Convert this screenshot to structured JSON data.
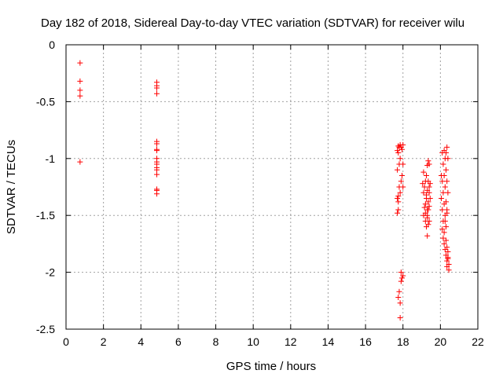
{
  "chart_data": {
    "type": "scatter",
    "title": "Day 182 of 2018, Sidereal Day-to-day VTEC variation (SDTVAR) for receiver wilu",
    "xlabel": "GPS time / hours",
    "ylabel": "SDTVAR / TECUs",
    "xlim": [
      0,
      22
    ],
    "ylim": [
      -2.5,
      0
    ],
    "xticks": [
      0,
      2,
      4,
      6,
      8,
      10,
      12,
      14,
      16,
      18,
      20,
      22
    ],
    "xtick_labels": [
      "0",
      "2",
      "4",
      "6",
      "8",
      "10",
      "12",
      "14",
      "16",
      "18",
      "20",
      "22"
    ],
    "yticks": [
      0,
      -0.5,
      -1,
      -1.5,
      -2,
      -2.5
    ],
    "ytick_labels": [
      "0",
      "-0.5",
      "-1",
      "-1.5",
      "-2",
      "-2.5"
    ],
    "grid": true,
    "marker": "+",
    "marker_color": "#ff0000",
    "series": [
      {
        "name": "SDTVAR",
        "x": [
          0.75,
          0.75,
          0.75,
          0.75,
          0.75,
          4.85,
          4.85,
          4.85,
          4.85,
          4.85,
          4.85,
          4.85,
          4.85,
          4.85,
          4.85,
          4.85,
          4.85,
          4.85,
          4.85,
          4.85,
          4.85,
          4.85,
          17.7,
          17.7,
          17.75,
          17.75,
          17.75,
          17.8,
          17.8,
          17.8,
          17.85,
          17.85,
          17.85,
          17.9,
          17.9,
          17.95,
          17.95,
          18.0,
          18.0,
          18.0,
          17.7,
          17.7,
          17.75,
          17.75,
          17.75,
          17.8,
          17.85,
          17.85,
          17.9,
          17.9,
          17.95,
          18.0,
          19.05,
          19.1,
          19.1,
          19.15,
          19.15,
          19.2,
          19.2,
          19.2,
          19.25,
          19.25,
          19.3,
          19.3,
          19.3,
          19.35,
          19.35,
          19.35,
          19.4,
          19.4,
          19.1,
          19.2,
          19.25,
          19.3,
          19.3,
          19.35,
          19.4,
          19.25,
          19.3,
          19.35,
          19.4,
          19.4,
          19.45,
          19.45,
          20.05,
          20.05,
          20.1,
          20.1,
          20.1,
          20.15,
          20.15,
          20.15,
          20.2,
          20.2,
          20.2,
          20.25,
          20.25,
          20.25,
          20.3,
          20.3,
          20.3,
          20.35,
          20.35,
          20.35,
          20.4,
          20.4,
          20.1,
          20.15,
          20.2,
          20.25,
          20.3,
          20.35,
          20.2,
          20.25,
          20.3,
          20.35,
          20.4,
          20.3,
          20.35,
          20.4,
          20.45,
          20.45,
          20.35,
          20.4
        ],
        "y": [
          -0.16,
          -0.32,
          -0.4,
          -0.45,
          -1.03,
          -0.33,
          -0.36,
          -0.38,
          -0.43,
          -0.85,
          -0.87,
          -0.92,
          -0.93,
          -1.0,
          -1.03,
          -1.05,
          -1.08,
          -1.1,
          -1.14,
          -1.27,
          -1.28,
          -1.31,
          -0.93,
          -1.1,
          -0.89,
          -0.95,
          -1.33,
          -0.9,
          -1.05,
          -1.25,
          -0.88,
          -1.0,
          -1.3,
          -0.9,
          -1.2,
          -0.92,
          -1.15,
          -0.88,
          -1.05,
          -1.25,
          -1.35,
          -1.48,
          -1.38,
          -1.45,
          -2.22,
          -2.17,
          -2.27,
          -2.4,
          -2.0,
          -2.08,
          -2.05,
          -2.03,
          -1.22,
          -1.12,
          -1.3,
          -1.25,
          -1.43,
          -1.2,
          -1.4,
          -1.48,
          -1.15,
          -1.32,
          -1.06,
          -1.28,
          -1.45,
          -1.02,
          -1.2,
          -1.38,
          -1.05,
          -1.25,
          -1.5,
          -1.55,
          -1.35,
          -1.5,
          -1.52,
          -1.45,
          -1.3,
          -1.6,
          -1.68,
          -1.58,
          -1.55,
          -1.42,
          -1.22,
          -1.35,
          -1.15,
          -1.35,
          -0.95,
          -1.2,
          -1.45,
          -1.05,
          -1.3,
          -1.55,
          -0.93,
          -1.15,
          -1.4,
          -1.0,
          -1.25,
          -1.5,
          -0.95,
          -1.1,
          -1.38,
          -0.9,
          -1.2,
          -1.45,
          -1.0,
          -1.3,
          -1.62,
          -1.7,
          -1.65,
          -1.55,
          -1.6,
          -1.48,
          -1.75,
          -1.8,
          -1.72,
          -1.78,
          -1.82,
          -1.85,
          -1.9,
          -1.88,
          -1.93,
          -1.98,
          -1.95,
          -1.87
        ]
      }
    ]
  }
}
